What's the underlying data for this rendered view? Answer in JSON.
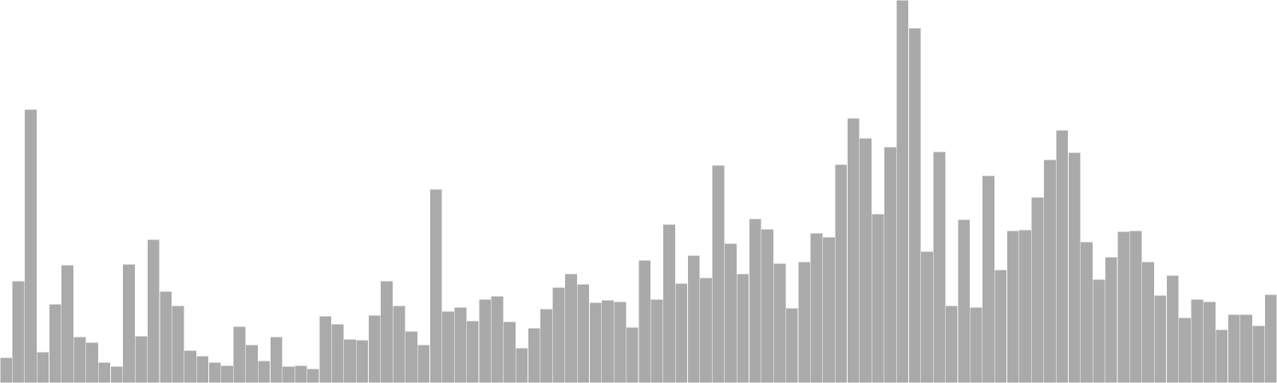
{
  "chart_data": {
    "type": "bar",
    "title": "",
    "xlabel": "",
    "ylabel": "",
    "ylim": [
      0,
      480
    ],
    "grid": false,
    "legend": "none",
    "bar_color": "#aaaaaa",
    "bar_edge_color": "#ffffff",
    "values": [
      32,
      128,
      343,
      39,
      99,
      148,
      58,
      51,
      26,
      21,
      149,
      59,
      180,
      115,
      97,
      41,
      34,
      26,
      22,
      71,
      48,
      28,
      58,
      21,
      22,
      18,
      84,
      74,
      55,
      54,
      85,
      128,
      97,
      65,
      48,
      243,
      90,
      95,
      78,
      105,
      109,
      77,
      44,
      69,
      93,
      120,
      137,
      124,
      101,
      104,
      102,
      70,
      154,
      105,
      199,
      125,
      160,
      132,
      273,
      175,
      137,
      206,
      193,
      150,
      94,
      152,
      188,
      183,
      274,
      332,
      307,
      212,
      296,
      480,
      445,
      165,
      290,
      97,
      205,
      95,
      260,
      142,
      191,
      192,
      233,
      280,
      317,
      289,
      177,
      130,
      158,
      190,
      191,
      152,
      110,
      135,
      82,
      105,
      102,
      67,
      86,
      86,
      72,
      111
    ]
  }
}
